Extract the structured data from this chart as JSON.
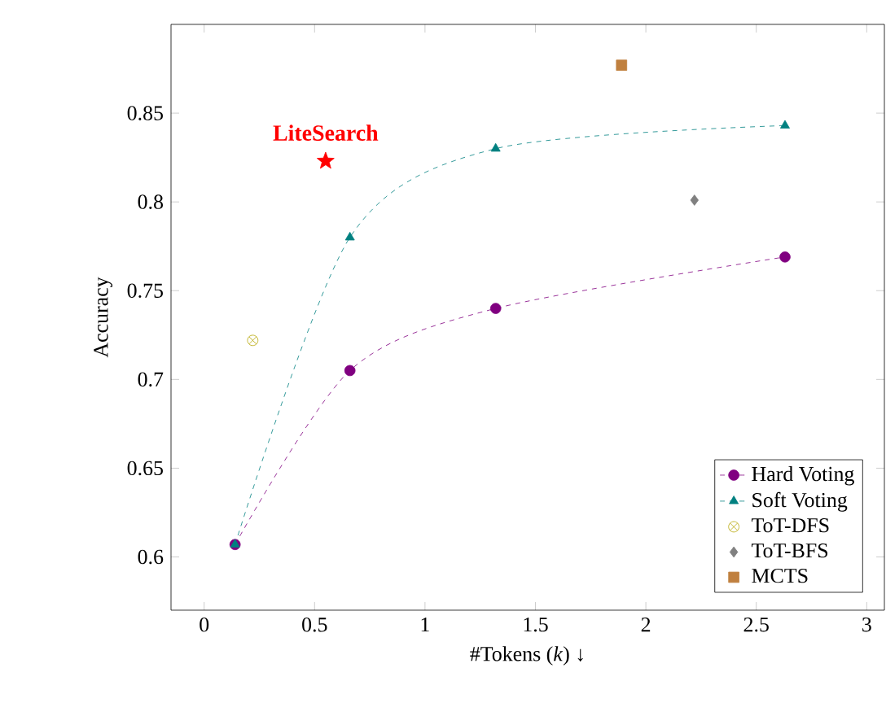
{
  "chart_data": {
    "type": "line",
    "xlabel": "#Tokens (*k*) ↓",
    "ylabel": "Accuracy",
    "xlim": [
      -0.15,
      3.08
    ],
    "ylim": [
      0.57,
      0.9
    ],
    "xticks": [
      0,
      0.5,
      1,
      1.5,
      2,
      2.5,
      3
    ],
    "yticks": [
      0.6,
      0.65,
      0.7,
      0.75,
      0.8,
      0.85
    ],
    "grid": false,
    "legend": "bottom right",
    "series": [
      {
        "name": "Hard Voting",
        "line_style": "dashed",
        "marker": "circle",
        "color": "#800080",
        "x": [
          0.14,
          0.66,
          1.32,
          2.63
        ],
        "values": [
          0.607,
          0.705,
          0.74,
          0.769
        ]
      },
      {
        "name": "Soft Voting",
        "line_style": "dashed",
        "marker": "triangle",
        "color": "#008080",
        "x": [
          0.14,
          0.66,
          1.32,
          2.63
        ],
        "values": [
          0.607,
          0.78,
          0.83,
          0.843
        ]
      },
      {
        "name": "ToT-DFS",
        "type": "scatter",
        "marker": "cross",
        "color": "#b5a400",
        "x": [
          0.22
        ],
        "values": [
          0.722
        ]
      },
      {
        "name": "ToT-BFS",
        "type": "scatter",
        "marker": "diamond",
        "color": "#808080",
        "x": [
          2.22
        ],
        "values": [
          0.801
        ]
      },
      {
        "name": "MCTS",
        "type": "scatter",
        "marker": "square",
        "color": "#c0803f",
        "x": [
          1.89
        ],
        "values": [
          0.877
        ]
      },
      {
        "type": "scatter",
        "marker": "star",
        "color": "#ff0000",
        "x": [
          0.55
        ],
        "values": [
          0.823
        ]
      }
    ],
    "annotations": [
      {
        "text": "**LiteSearch**",
        "x": 0.55,
        "y": 0.823
      }
    ]
  }
}
